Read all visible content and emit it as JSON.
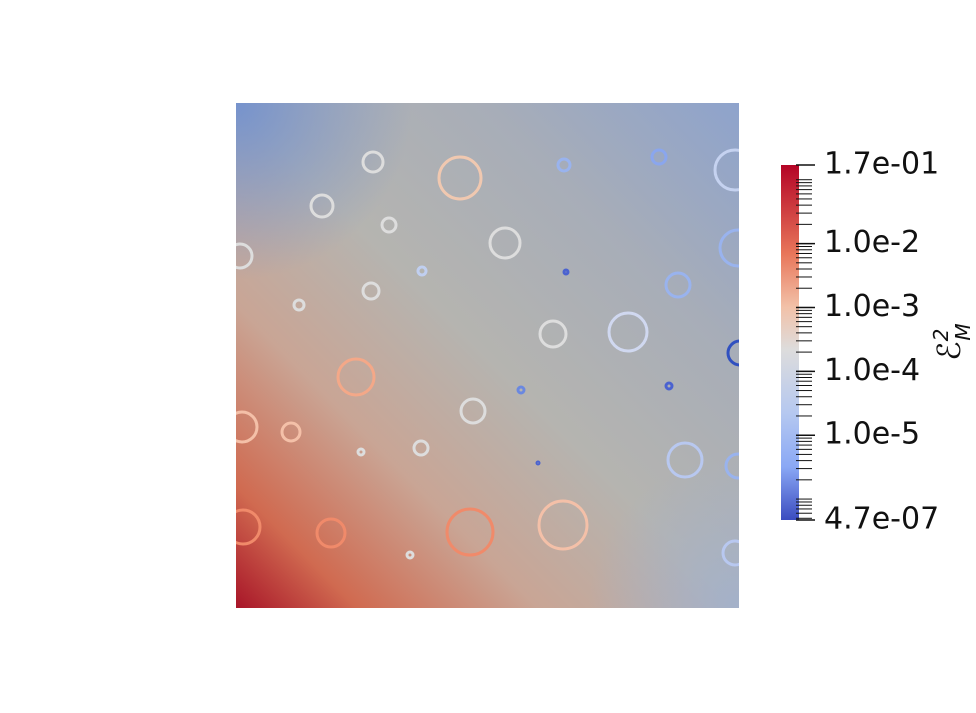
{
  "colorbar": {
    "scale": "log",
    "ticks": [
      {
        "value": 0.17,
        "label": "1.7e-01"
      },
      {
        "value": 0.01,
        "label": "1.0e-2"
      },
      {
        "value": 0.001,
        "label": "1.0e-3"
      },
      {
        "value": 0.0001,
        "label": "1.0e-4"
      },
      {
        "value": 1e-05,
        "label": "1.0e-5"
      },
      {
        "value": 4.7e-07,
        "label": "4.7e-07"
      }
    ],
    "label": {
      "symbol": "ℰ",
      "superscript": "2",
      "subscript": "M"
    }
  }
}
